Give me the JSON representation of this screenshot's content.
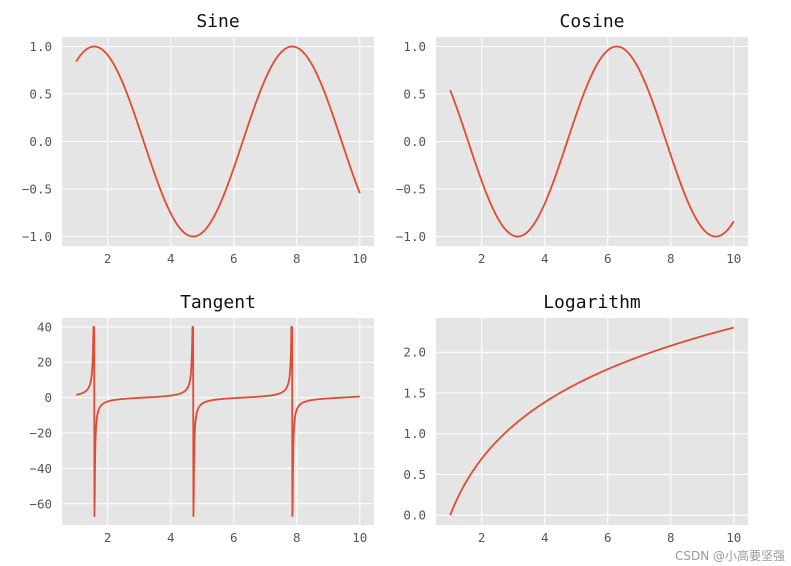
{
  "watermark": "CSDN @小高要坚强",
  "style": {
    "panel_bg": "#e5e5e5",
    "grid": "#ffffff",
    "line": "#e24a33",
    "tick_text": "#555555"
  },
  "chart_data": [
    {
      "type": "line",
      "title": "Sine",
      "function": "sin",
      "x_range": [
        1,
        10
      ],
      "xlim": [
        0.55,
        10.45
      ],
      "ylim": [
        -1.1,
        1.1
      ],
      "xticks": [
        2,
        4,
        6,
        8,
        10
      ],
      "xtick_labels": [
        "2",
        "4",
        "6",
        "8",
        "10"
      ],
      "yticks": [
        1.0,
        0.5,
        0.0,
        -0.5,
        -1.0
      ],
      "ytick_labels": [
        "1.0",
        "0.5",
        "0.0",
        "−0.5",
        "−1.0"
      ],
      "grid": true,
      "x": [
        1,
        1.5,
        2,
        2.5,
        3,
        3.5,
        4,
        4.5,
        5,
        5.5,
        6,
        6.5,
        7,
        7.5,
        8,
        8.5,
        9,
        9.5,
        10
      ],
      "y": [
        0.84,
        1.0,
        0.91,
        0.6,
        0.14,
        -0.35,
        -0.76,
        -0.98,
        -0.96,
        -0.71,
        -0.28,
        0.22,
        0.66,
        0.94,
        0.99,
        0.8,
        0.41,
        -0.08,
        -0.54
      ]
    },
    {
      "type": "line",
      "title": "Cosine",
      "function": "cos",
      "x_range": [
        1,
        10
      ],
      "xlim": [
        0.55,
        10.45
      ],
      "ylim": [
        -1.1,
        1.1
      ],
      "xticks": [
        2,
        4,
        6,
        8,
        10
      ],
      "xtick_labels": [
        "2",
        "4",
        "6",
        "8",
        "10"
      ],
      "yticks": [
        1.0,
        0.5,
        0.0,
        -0.5,
        -1.0
      ],
      "ytick_labels": [
        "1.0",
        "0.5",
        "0.0",
        "−0.5",
        "−1.0"
      ],
      "grid": true,
      "x": [
        1,
        1.5,
        2,
        2.5,
        3,
        3.5,
        4,
        4.5,
        5,
        5.5,
        6,
        6.5,
        7,
        7.5,
        8,
        8.5,
        9,
        9.5,
        10
      ],
      "y": [
        0.54,
        0.07,
        -0.42,
        -0.8,
        -0.99,
        -0.94,
        -0.65,
        -0.21,
        0.28,
        0.71,
        0.96,
        0.98,
        0.75,
        0.35,
        -0.15,
        -0.6,
        -0.91,
        -1.0,
        -0.84
      ]
    },
    {
      "type": "line",
      "title": "Tangent",
      "function": "tan",
      "x_range": [
        1,
        10
      ],
      "xlim": [
        0.55,
        10.45
      ],
      "ylim": [
        -72,
        45
      ],
      "xticks": [
        2,
        4,
        6,
        8,
        10
      ],
      "xtick_labels": [
        "2",
        "4",
        "6",
        "8",
        "10"
      ],
      "yticks": [
        40,
        20,
        0,
        -20,
        -40,
        -60
      ],
      "ytick_labels": [
        "40",
        "20",
        "0",
        "−20",
        "−40",
        "−60"
      ],
      "grid": true,
      "x": [
        1,
        1.5,
        1.55,
        1.6,
        2,
        3,
        4,
        4.6,
        4.65,
        4.7,
        5,
        6,
        7,
        7.8,
        7.85,
        7.9,
        9,
        10
      ],
      "y": [
        1.56,
        14.1,
        40.0,
        -15.0,
        -2.19,
        -0.14,
        1.16,
        13.0,
        -67.0,
        -6.5,
        -3.38,
        -0.29,
        0.87,
        28.0,
        -18.0,
        -14.0,
        -0.45,
        0.65
      ]
    },
    {
      "type": "line",
      "title": "Logarithm",
      "function": "ln",
      "x_range": [
        1,
        10
      ],
      "xlim": [
        0.55,
        10.45
      ],
      "ylim": [
        -0.12,
        2.42
      ],
      "xticks": [
        2,
        4,
        6,
        8,
        10
      ],
      "xtick_labels": [
        "2",
        "4",
        "6",
        "8",
        "10"
      ],
      "yticks": [
        2.0,
        1.5,
        1.0,
        0.5,
        0.0
      ],
      "ytick_labels": [
        "2.0",
        "1.5",
        "1.0",
        "0.5",
        "0.0"
      ],
      "grid": true,
      "x": [
        1,
        1.5,
        2,
        3,
        4,
        5,
        6,
        7,
        8,
        9,
        10
      ],
      "y": [
        0.0,
        0.41,
        0.69,
        1.1,
        1.39,
        1.61,
        1.79,
        1.95,
        2.08,
        2.2,
        2.3
      ]
    }
  ]
}
